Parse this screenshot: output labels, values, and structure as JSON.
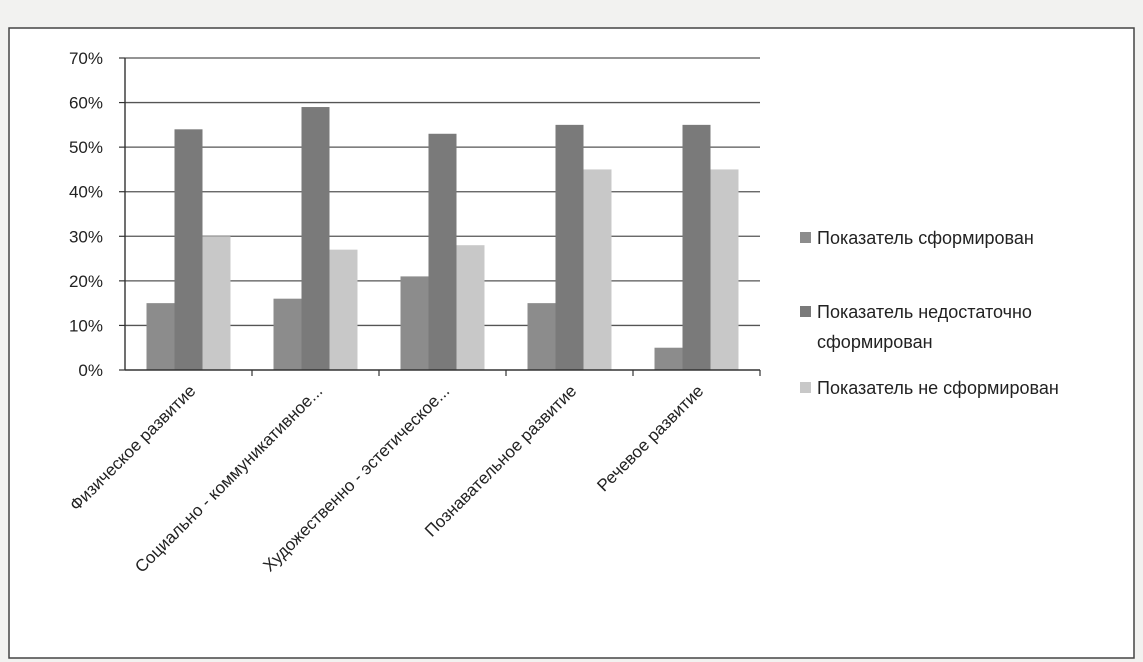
{
  "chart_data": {
    "type": "bar",
    "categories": [
      "Физическое развитие",
      "Социально - коммуникативное...",
      "Художественно - эстетическое...",
      "Познавательное развитие",
      "Речевое развитие"
    ],
    "series": [
      {
        "name": "Показатель сформирован",
        "values": [
          15,
          16,
          21,
          15,
          5
        ],
        "color": "#8c8c8c"
      },
      {
        "name": "Показатель недостаточно сформирован",
        "values": [
          54,
          59,
          53,
          55,
          55
        ],
        "color": "#7a7a7a"
      },
      {
        "name": "Показатель не сформирован",
        "values": [
          30,
          27,
          28,
          45,
          45
        ],
        "color": "#c8c8c8"
      }
    ],
    "yticks": [
      "0%",
      "10%",
      "20%",
      "30%",
      "40%",
      "50%",
      "60%",
      "70%"
    ],
    "ylim": [
      0,
      70
    ],
    "grid": true,
    "legend_position": "right"
  }
}
